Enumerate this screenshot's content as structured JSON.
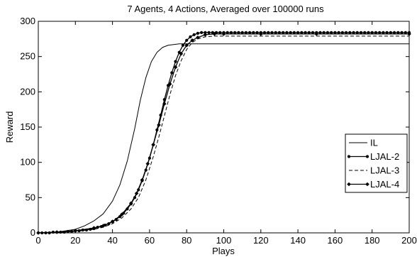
{
  "chart_data": {
    "type": "line",
    "title": "7 Agents, 4 Actions, Averaged over 100000 runs",
    "xlabel": "Plays",
    "ylabel": "Reward",
    "xlim": [
      0,
      200
    ],
    "ylim": [
      0,
      300
    ],
    "xticks": [
      0,
      20,
      40,
      60,
      80,
      100,
      120,
      140,
      160,
      180,
      200
    ],
    "yticks": [
      0,
      50,
      100,
      150,
      200,
      250,
      300
    ],
    "xtick_labels": [
      "0",
      "20",
      "40",
      "60",
      "80",
      "100",
      "120",
      "140",
      "160",
      "180",
      "200"
    ],
    "ytick_labels": [
      "0",
      "50",
      "100",
      "150",
      "200",
      "250",
      "300"
    ],
    "grid": false,
    "legend_position": "right",
    "series": [
      {
        "name": "IL",
        "style": "solid",
        "marker": "none",
        "color": "#000000",
        "x": [
          0,
          10,
          20,
          25,
          30,
          35,
          40,
          44,
          48,
          52,
          55,
          58,
          61,
          64,
          67,
          70,
          73,
          76,
          80,
          90,
          100,
          120,
          150,
          200
        ],
        "y": [
          0,
          1,
          5,
          10,
          17,
          27,
          45,
          68,
          102,
          148,
          188,
          220,
          243,
          256,
          263,
          266,
          267,
          268,
          268,
          268,
          268,
          268,
          268,
          268
        ]
      },
      {
        "name": "LJAL-2",
        "style": "solid",
        "marker": "dot",
        "color": "#000000",
        "x": [
          0,
          2,
          4,
          6,
          8,
          10,
          12,
          14,
          16,
          18,
          20,
          22,
          24,
          26,
          28,
          30,
          32,
          34,
          36,
          38,
          40,
          42,
          44,
          46,
          48,
          50,
          52,
          54,
          56,
          58,
          60,
          62,
          64,
          66,
          68,
          70,
          72,
          74,
          76,
          78,
          80,
          82,
          84,
          86,
          88,
          90,
          92,
          94,
          96,
          98,
          100,
          102,
          104,
          106,
          108,
          110,
          112,
          114,
          116,
          118,
          120,
          122,
          124,
          126,
          128,
          130,
          132,
          134,
          136,
          138,
          140,
          142,
          144,
          146,
          148,
          150,
          152,
          154,
          156,
          158,
          160,
          162,
          164,
          166,
          168,
          170,
          172,
          174,
          176,
          178,
          180,
          182,
          184,
          186,
          188,
          190,
          192,
          194,
          196,
          198,
          200
        ],
        "y": [
          0,
          0,
          0,
          0,
          1,
          1,
          1,
          1,
          2,
          2,
          3,
          3,
          4,
          4,
          5,
          6,
          8,
          9,
          11,
          13,
          16,
          19,
          23,
          28,
          34,
          41,
          50,
          61,
          74,
          89,
          106,
          125,
          146,
          167,
          189,
          209,
          227,
          243,
          256,
          266,
          273,
          278,
          281,
          283,
          284,
          284,
          284,
          284,
          284,
          284,
          284,
          284,
          284,
          284,
          284,
          284,
          284,
          284,
          284,
          284,
          284,
          284,
          284,
          284,
          284,
          284,
          284,
          284,
          284,
          284,
          284,
          284,
          284,
          284,
          284,
          284,
          284,
          284,
          284,
          284,
          284,
          284,
          284,
          284,
          284,
          284,
          284,
          284,
          284,
          284,
          284,
          284,
          284,
          284,
          284,
          284,
          284,
          284,
          284,
          284,
          284
        ]
      },
      {
        "name": "LJAL-3",
        "style": "dashed",
        "marker": "none",
        "color": "#000000",
        "x": [
          0,
          10,
          20,
          30,
          35,
          40,
          45,
          50,
          54,
          58,
          62,
          65,
          68,
          71,
          74,
          77,
          80,
          83,
          86,
          90,
          95,
          100,
          120,
          150,
          200
        ],
        "y": [
          0,
          1,
          2,
          5,
          8,
          13,
          21,
          34,
          50,
          75,
          108,
          136,
          166,
          196,
          223,
          244,
          260,
          270,
          275,
          278,
          279,
          279,
          279,
          279,
          279
        ]
      },
      {
        "name": "LJAL-4",
        "style": "solid",
        "marker": "diamond",
        "color": "#000000",
        "x": [
          0,
          10,
          20,
          30,
          35,
          40,
          45,
          50,
          53,
          56,
          59,
          62,
          65,
          68,
          71,
          74,
          77,
          80,
          83,
          86,
          90,
          95,
          100,
          120,
          150,
          200
        ],
        "y": [
          0,
          1,
          3,
          7,
          10,
          16,
          26,
          42,
          56,
          75,
          98,
          125,
          153,
          183,
          211,
          235,
          254,
          266,
          273,
          277,
          281,
          282,
          282,
          282,
          282,
          282
        ]
      }
    ]
  }
}
